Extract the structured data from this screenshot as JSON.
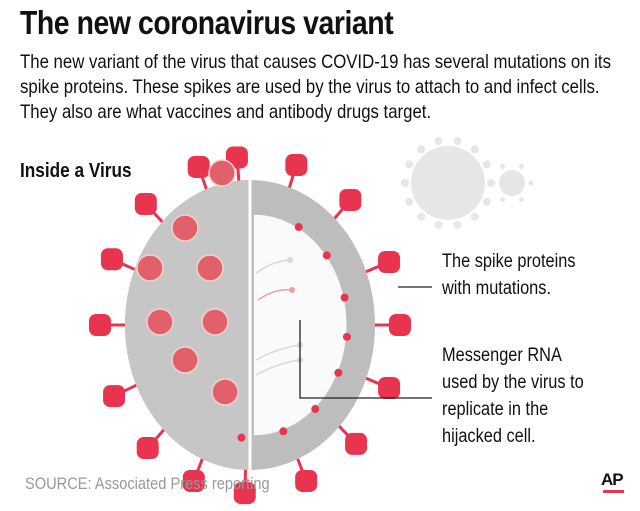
{
  "header": {
    "title": "The new coronavirus variant",
    "intro": "The new variant of the virus that causes COVID-19 has several mutations on its spike proteins. These spikes are used by the virus to attach to and infect cells. They also are what vaccines and antibody drugs target."
  },
  "diagram": {
    "subtitle": "Inside a Virus",
    "labels": {
      "spike": "The spike proteins with mutations.",
      "rna": "Messenger RNA used by the virus to replicate in the hijacked cell."
    },
    "colors": {
      "spike": "#e8344f",
      "shell": "#bdbdbd",
      "background_virus": "#e6e6e6"
    }
  },
  "footer": {
    "source": "SOURCE: Associated Press reporting",
    "logo": "AP"
  }
}
